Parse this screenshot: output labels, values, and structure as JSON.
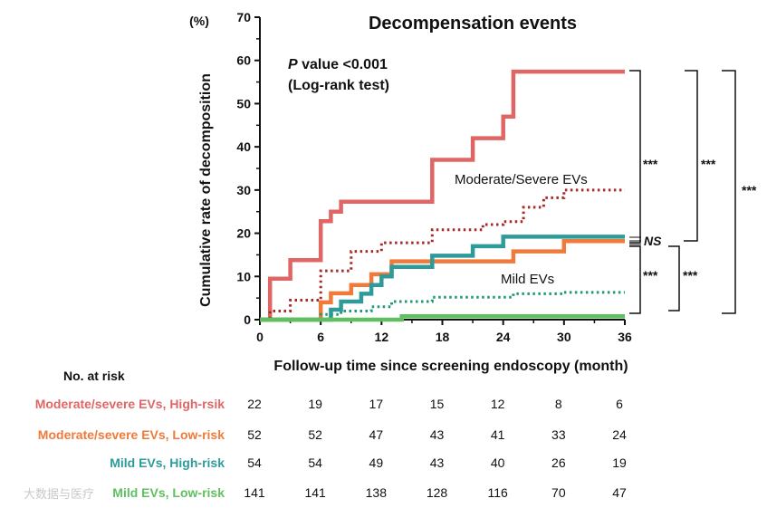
{
  "chart_data": {
    "type": "line",
    "title": "Decompensation events",
    "ylabel": "Cumulative rate of decomposition",
    "yunit": "(%)",
    "xlabel": "Follow-up time since screening endoscopy (month)",
    "xlim": [
      0,
      36
    ],
    "ylim": [
      0,
      70
    ],
    "xticks": [
      0,
      6,
      12,
      18,
      24,
      30,
      36
    ],
    "yticks": [
      0,
      10,
      20,
      30,
      40,
      50,
      60,
      70
    ],
    "pvalue_line1_italic": "P",
    "pvalue_line1_rest": " value  <0.001",
    "pvalue_line2": "(Log-rank test)",
    "series_labels": {
      "moderate": "Moderate/Severe EVs",
      "mild": "Mild EVs"
    },
    "series": [
      {
        "name": "Moderate/severe EVs, High-rsik",
        "color": "#e06666",
        "style": "solid",
        "x": [
          0,
          1,
          1,
          3,
          3,
          6,
          6,
          7,
          7,
          8,
          8,
          12,
          12,
          17,
          17,
          21,
          21,
          24,
          24,
          25,
          25,
          36
        ],
        "y": [
          0,
          0,
          9.5,
          9.5,
          13.8,
          13.8,
          22.8,
          22.8,
          25,
          25,
          27.3,
          27.3,
          27.3,
          27.3,
          37,
          37,
          42,
          42,
          47,
          47,
          57.4,
          57.4
        ]
      },
      {
        "name": "Moderate/Severe EVs (all)",
        "color": "#a52a2a",
        "style": "dotted",
        "x": [
          0,
          1,
          1,
          3,
          3,
          6,
          6,
          9,
          9,
          12,
          12,
          17,
          17,
          22,
          22,
          24,
          24,
          26,
          26,
          28,
          28,
          30,
          30,
          36
        ],
        "y": [
          0,
          0,
          2,
          2,
          4.5,
          4.5,
          11.3,
          11.3,
          15.8,
          15.8,
          17.8,
          17.8,
          20.8,
          20.8,
          22,
          22,
          22.7,
          22.7,
          26,
          26,
          28.2,
          28.2,
          30,
          30
        ]
      },
      {
        "name": "Moderate/severe EVs,  Low-risk",
        "color": "#f07a3a",
        "style": "solid",
        "x": [
          0,
          6,
          6,
          7,
          7,
          9,
          9,
          11,
          11,
          13,
          13,
          17,
          17,
          25,
          25,
          30,
          30,
          36
        ],
        "y": [
          0,
          0,
          4,
          4,
          6.1,
          6.1,
          8,
          8,
          10.5,
          10.5,
          13.5,
          13.5,
          13.5,
          13.5,
          15.8,
          15.8,
          18.2,
          18.2
        ]
      },
      {
        "name": "Mild EVs,  High-risk",
        "color": "#2e9b9b",
        "style": "solid",
        "x": [
          0,
          7,
          7,
          8,
          8,
          10,
          10,
          11,
          11,
          12,
          12,
          13,
          13,
          17,
          17,
          21,
          21,
          24,
          24,
          36
        ],
        "y": [
          0,
          0,
          2.3,
          2.3,
          4.2,
          4.2,
          6,
          6,
          8,
          8,
          10,
          10,
          12.2,
          12.2,
          14.8,
          14.8,
          17,
          17,
          19.2,
          19.2
        ]
      },
      {
        "name": "Mild EVs (all)",
        "color": "#1f9a78",
        "style": "dotted",
        "x": [
          0,
          6,
          6,
          8,
          8,
          11,
          11,
          13,
          13,
          17,
          17,
          25,
          25,
          30,
          30,
          36
        ],
        "y": [
          0,
          0,
          1.2,
          1.2,
          2,
          2,
          3,
          3,
          4.2,
          4.2,
          5.2,
          5.2,
          6,
          6,
          6.3,
          6.3
        ]
      },
      {
        "name": "Mild EVs,  Low-risk",
        "color": "#5fc05f",
        "style": "solid",
        "x": [
          0,
          14,
          14,
          36
        ],
        "y": [
          0,
          0,
          0.8,
          0.8
        ]
      }
    ],
    "significance": [
      "***",
      "***",
      "***",
      "NS",
      "***",
      "***"
    ],
    "risk_table": {
      "heading": "No. at risk",
      "rows": [
        {
          "label": "Moderate/severe EVs,  High-rsik",
          "color": "#e06666",
          "values": [
            22,
            19,
            17,
            15,
            12,
            8,
            6
          ]
        },
        {
          "label": "Moderate/severe EVs,  Low-risk",
          "color": "#f07a3a",
          "values": [
            52,
            52,
            47,
            43,
            41,
            33,
            24
          ]
        },
        {
          "label": "Mild EVs,  High-risk",
          "color": "#2e9b9b",
          "values": [
            54,
            54,
            49,
            43,
            40,
            26,
            19
          ]
        },
        {
          "label": "Mild EVs,  Low-risk",
          "color": "#5fc05f",
          "values": [
            141,
            141,
            138,
            128,
            116,
            70,
            47
          ]
        }
      ]
    }
  },
  "watermark": "大数据与医疗"
}
